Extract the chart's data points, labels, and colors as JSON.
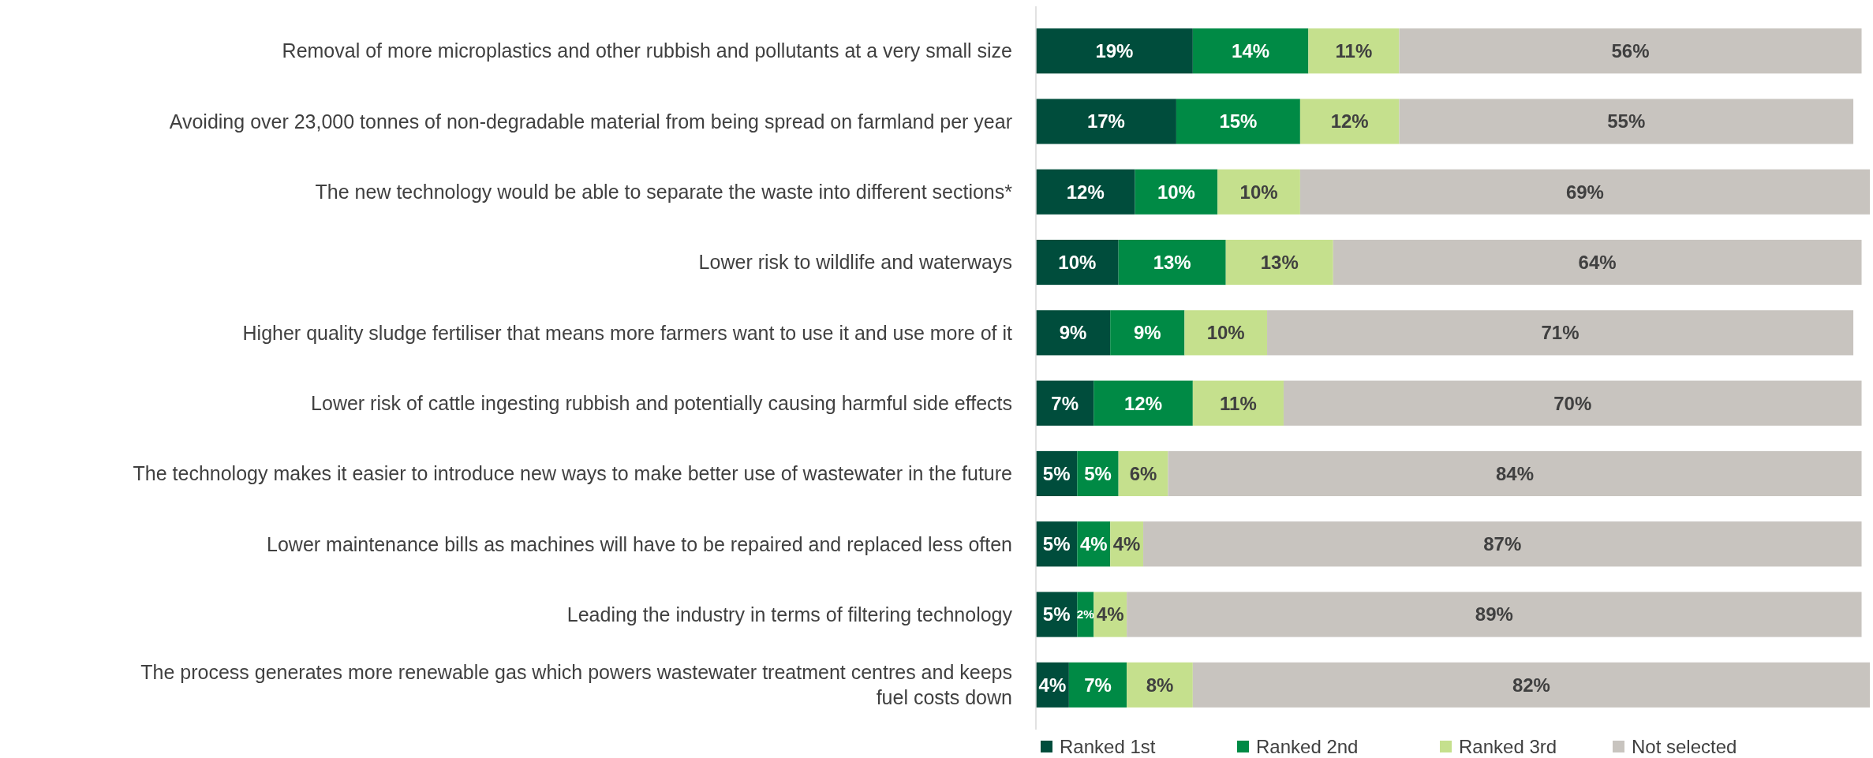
{
  "chart_data": {
    "type": "bar",
    "orientation": "horizontal",
    "stacked": true,
    "legend": "bottom",
    "categories": [
      "Removal of more microplastics and other rubbish and pollutants at a very small size",
      "Avoiding over 23,000 tonnes of non-degradable material from being spread on farmland per year",
      "The new technology would be able to separate the waste into different sections*",
      "Lower risk to wildlife and waterways",
      "Higher quality sludge fertiliser that means more farmers want to use it and use more of it",
      "Lower risk of cattle ingesting rubbish and potentially causing harmful side effects",
      "The technology makes it easier to introduce new ways to make better use of wastewater in the future",
      "Lower maintenance bills as machines will have to be repaired and replaced less often",
      "Leading the industry in terms of filtering technology",
      "The process generates more renewable gas which powers wastewater treatment centres and keeps fuel costs down"
    ],
    "series": [
      {
        "name": "Ranked 1st",
        "color": "#004d3c",
        "values": [
          19,
          17,
          12,
          10,
          9,
          7,
          5,
          5,
          5,
          4
        ],
        "value_labels": [
          "19%",
          "17%",
          "12%",
          "10%",
          "9%",
          "7%",
          "5%",
          "5%",
          "5%",
          "4%"
        ]
      },
      {
        "name": "Ranked 2nd",
        "color": "#008a45",
        "values": [
          14,
          15,
          10,
          13,
          9,
          12,
          5,
          4,
          2,
          7
        ],
        "value_labels": [
          "14%",
          "15%",
          "10%",
          "13%",
          "9%",
          "12%",
          "5%",
          "4%",
          "2%",
          "7%"
        ]
      },
      {
        "name": "Ranked 3rd",
        "color": "#c5e08d",
        "values": [
          11,
          12,
          10,
          13,
          10,
          11,
          6,
          4,
          4,
          8
        ],
        "value_labels": [
          "11%",
          "12%",
          "10%",
          "13%",
          "10%",
          "11%",
          "6%",
          "4%",
          "4%",
          "8%"
        ]
      },
      {
        "name": "Not selected",
        "color": "#c8c4bf",
        "values": [
          56,
          55,
          69,
          64,
          71,
          70,
          84,
          87,
          89,
          82
        ],
        "value_labels": [
          "56%",
          "55%",
          "69%",
          "64%",
          "71%",
          "70%",
          "84%",
          "87%",
          "89%",
          "82%"
        ]
      }
    ]
  }
}
